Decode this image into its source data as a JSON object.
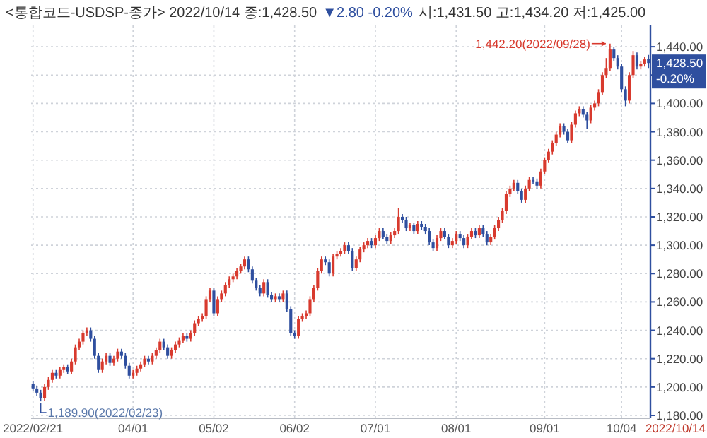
{
  "chart_data": {
    "type": "candlestick",
    "title": "<통합코드-USDSP-종가> 2022/10/14 종:1,428.50",
    "subtitle": "▼2.80  -0.20%",
    "annotations": [
      "시:1,431.50 고:1,434.20 저:1,425.00",
      "1,442.20(2022/09/28)",
      "1,189.90(2022/02/23)",
      "1,428.50",
      "-0.20%",
      "2022/10/14"
    ],
    "categories": [
      "2022/02/21",
      null,
      null,
      null,
      null,
      null,
      null,
      null,
      null,
      null,
      null,
      null,
      null,
      null,
      null,
      null,
      null,
      null,
      null,
      null,
      null,
      null,
      null,
      null,
      null,
      null,
      "04/01",
      null,
      null,
      null,
      null,
      null,
      null,
      null,
      null,
      null,
      null,
      null,
      null,
      null,
      null,
      null,
      null,
      null,
      null,
      null,
      null,
      "05/02",
      null,
      null,
      null,
      null,
      null,
      null,
      null,
      null,
      null,
      null,
      null,
      null,
      null,
      null,
      null,
      null,
      null,
      null,
      null,
      null,
      "06/02",
      null,
      null,
      null,
      null,
      null,
      null,
      null,
      null,
      null,
      null,
      null,
      null,
      null,
      null,
      null,
      null,
      null,
      null,
      null,
      null,
      "07/01",
      null,
      null,
      null,
      null,
      null,
      null,
      null,
      null,
      null,
      null,
      null,
      null,
      null,
      null,
      null,
      null,
      null,
      null,
      null,
      null,
      "08/01",
      null,
      null,
      null,
      null,
      null,
      null,
      null,
      null,
      null,
      null,
      null,
      null,
      null,
      null,
      null,
      null,
      null,
      null,
      null,
      null,
      null,
      null,
      "09/01",
      null,
      null,
      null,
      null,
      null,
      null,
      null,
      null,
      null,
      null,
      null,
      null,
      null,
      null,
      null,
      null,
      null,
      null,
      null,
      "10/04",
      null,
      null,
      null,
      null,
      null,
      null,
      null
    ],
    "ohlc": [
      [
        1202,
        1204,
        1197,
        1199
      ],
      [
        1199,
        1201,
        1194,
        1196
      ],
      [
        1196,
        1198,
        1189.9,
        1192
      ],
      [
        1192,
        1202,
        1190,
        1200
      ],
      [
        1200,
        1207,
        1198,
        1205
      ],
      [
        1205,
        1212,
        1203,
        1210
      ],
      [
        1210,
        1212,
        1206,
        1208
      ],
      [
        1208,
        1214,
        1206,
        1212
      ],
      [
        1212,
        1216,
        1210,
        1214
      ],
      [
        1214,
        1216,
        1209,
        1211
      ],
      [
        1211,
        1220,
        1209,
        1218
      ],
      [
        1218,
        1230,
        1216,
        1228
      ],
      [
        1228,
        1234,
        1226,
        1232
      ],
      [
        1232,
        1240,
        1230,
        1238
      ],
      [
        1238,
        1242,
        1236,
        1240
      ],
      [
        1240,
        1242,
        1232,
        1234
      ],
      [
        1234,
        1236,
        1220,
        1222
      ],
      [
        1222,
        1224,
        1210,
        1212
      ],
      [
        1212,
        1220,
        1210,
        1218
      ],
      [
        1218,
        1224,
        1216,
        1222
      ],
      [
        1222,
        1224,
        1215,
        1217
      ],
      [
        1217,
        1222,
        1215,
        1220
      ],
      [
        1220,
        1227,
        1218,
        1225
      ],
      [
        1225,
        1227,
        1220,
        1222
      ],
      [
        1222,
        1224,
        1213,
        1215
      ],
      [
        1215,
        1217,
        1206,
        1208
      ],
      [
        1208,
        1212,
        1206,
        1210
      ],
      [
        1210,
        1215,
        1208,
        1213
      ],
      [
        1213,
        1218,
        1211,
        1216
      ],
      [
        1216,
        1222,
        1214,
        1220
      ],
      [
        1220,
        1222,
        1216,
        1218
      ],
      [
        1218,
        1224,
        1216,
        1222
      ],
      [
        1222,
        1228,
        1220,
        1226
      ],
      [
        1226,
        1234,
        1224,
        1232
      ],
      [
        1232,
        1234,
        1226,
        1228
      ],
      [
        1228,
        1230,
        1220,
        1222
      ],
      [
        1222,
        1228,
        1220,
        1226
      ],
      [
        1226,
        1232,
        1224,
        1230
      ],
      [
        1230,
        1235,
        1228,
        1233
      ],
      [
        1233,
        1238,
        1231,
        1236
      ],
      [
        1236,
        1238,
        1232,
        1234
      ],
      [
        1234,
        1240,
        1232,
        1238
      ],
      [
        1238,
        1247,
        1236,
        1245
      ],
      [
        1245,
        1250,
        1243,
        1248
      ],
      [
        1248,
        1252,
        1246,
        1250
      ],
      [
        1250,
        1264,
        1248,
        1262
      ],
      [
        1262,
        1270,
        1260,
        1268
      ],
      [
        1268,
        1270,
        1250,
        1252
      ],
      [
        1252,
        1264,
        1250,
        1262
      ],
      [
        1262,
        1268,
        1260,
        1266
      ],
      [
        1266,
        1274,
        1264,
        1272
      ],
      [
        1272,
        1278,
        1270,
        1276
      ],
      [
        1276,
        1280,
        1274,
        1278
      ],
      [
        1278,
        1284,
        1276,
        1282
      ],
      [
        1282,
        1287,
        1280,
        1285
      ],
      [
        1285,
        1292,
        1283,
        1290
      ],
      [
        1290,
        1292,
        1281,
        1283
      ],
      [
        1283,
        1285,
        1273,
        1275
      ],
      [
        1275,
        1277,
        1268,
        1270
      ],
      [
        1270,
        1272,
        1264,
        1266
      ],
      [
        1266,
        1276,
        1264,
        1274
      ],
      [
        1274,
        1276,
        1263,
        1265
      ],
      [
        1265,
        1267,
        1260,
        1262
      ],
      [
        1262,
        1266,
        1260,
        1264
      ],
      [
        1264,
        1266,
        1260,
        1262
      ],
      [
        1262,
        1268,
        1260,
        1266
      ],
      [
        1266,
        1268,
        1253,
        1255
      ],
      [
        1255,
        1257,
        1236,
        1238
      ],
      [
        1238,
        1240,
        1234,
        1236
      ],
      [
        1236,
        1250,
        1234,
        1248
      ],
      [
        1248,
        1252,
        1246,
        1250
      ],
      [
        1250,
        1254,
        1248,
        1252
      ],
      [
        1252,
        1264,
        1250,
        1262
      ],
      [
        1262,
        1272,
        1260,
        1270
      ],
      [
        1270,
        1284,
        1268,
        1282
      ],
      [
        1282,
        1292,
        1280,
        1290
      ],
      [
        1290,
        1292,
        1286,
        1288
      ],
      [
        1288,
        1290,
        1278,
        1280
      ],
      [
        1280,
        1294,
        1278,
        1292
      ],
      [
        1292,
        1296,
        1290,
        1294
      ],
      [
        1294,
        1298,
        1292,
        1296
      ],
      [
        1296,
        1302,
        1294,
        1300
      ],
      [
        1300,
        1302,
        1294,
        1296
      ],
      [
        1296,
        1298,
        1282,
        1284
      ],
      [
        1284,
        1292,
        1282,
        1290
      ],
      [
        1290,
        1299,
        1288,
        1297
      ],
      [
        1297,
        1302,
        1295,
        1300
      ],
      [
        1300,
        1305,
        1298,
        1303
      ],
      [
        1303,
        1305,
        1298,
        1300
      ],
      [
        1300,
        1307,
        1298,
        1305
      ],
      [
        1305,
        1312,
        1303,
        1310
      ],
      [
        1310,
        1312,
        1304,
        1306
      ],
      [
        1306,
        1308,
        1301,
        1303
      ],
      [
        1303,
        1309,
        1301,
        1307
      ],
      [
        1307,
        1312,
        1305,
        1310
      ],
      [
        1310,
        1326,
        1308,
        1320
      ],
      [
        1320,
        1322,
        1316,
        1318
      ],
      [
        1318,
        1320,
        1310,
        1312
      ],
      [
        1312,
        1316,
        1310,
        1314
      ],
      [
        1314,
        1316,
        1308,
        1310
      ],
      [
        1310,
        1317,
        1308,
        1315
      ],
      [
        1315,
        1317,
        1311,
        1313
      ],
      [
        1313,
        1315,
        1308,
        1310
      ],
      [
        1310,
        1312,
        1300,
        1302
      ],
      [
        1302,
        1304,
        1296,
        1298
      ],
      [
        1298,
        1307,
        1296,
        1305
      ],
      [
        1305,
        1312,
        1303,
        1310
      ],
      [
        1310,
        1312,
        1304,
        1306
      ],
      [
        1306,
        1308,
        1298,
        1300
      ],
      [
        1300,
        1305,
        1298,
        1303
      ],
      [
        1303,
        1310,
        1301,
        1308
      ],
      [
        1308,
        1310,
        1303,
        1305
      ],
      [
        1305,
        1307,
        1298,
        1300
      ],
      [
        1300,
        1308,
        1298,
        1306
      ],
      [
        1306,
        1312,
        1304,
        1310
      ],
      [
        1310,
        1312,
        1305,
        1307
      ],
      [
        1307,
        1314,
        1305,
        1312
      ],
      [
        1312,
        1314,
        1306,
        1308
      ],
      [
        1308,
        1310,
        1300,
        1302
      ],
      [
        1302,
        1308,
        1300,
        1306
      ],
      [
        1306,
        1314,
        1304,
        1312
      ],
      [
        1312,
        1320,
        1310,
        1318
      ],
      [
        1318,
        1326,
        1316,
        1324
      ],
      [
        1324,
        1338,
        1322,
        1336
      ],
      [
        1336,
        1342,
        1334,
        1340
      ],
      [
        1340,
        1346,
        1338,
        1344
      ],
      [
        1344,
        1346,
        1336,
        1338
      ],
      [
        1338,
        1340,
        1330,
        1332
      ],
      [
        1332,
        1342,
        1330,
        1340
      ],
      [
        1340,
        1348,
        1338,
        1346
      ],
      [
        1346,
        1348,
        1343,
        1345
      ],
      [
        1345,
        1347,
        1340,
        1342
      ],
      [
        1342,
        1354,
        1340,
        1352
      ],
      [
        1352,
        1362,
        1350,
        1360
      ],
      [
        1360,
        1368,
        1358,
        1366
      ],
      [
        1366,
        1374,
        1364,
        1372
      ],
      [
        1372,
        1380,
        1370,
        1378
      ],
      [
        1378,
        1386,
        1376,
        1384
      ],
      [
        1384,
        1386,
        1378,
        1380
      ],
      [
        1380,
        1382,
        1372,
        1374
      ],
      [
        1374,
        1387,
        1372,
        1385
      ],
      [
        1385,
        1395,
        1383,
        1393
      ],
      [
        1393,
        1398,
        1391,
        1396
      ],
      [
        1396,
        1398,
        1390,
        1392
      ],
      [
        1392,
        1394,
        1382,
        1388
      ],
      [
        1388,
        1399,
        1386,
        1397
      ],
      [
        1397,
        1402,
        1395,
        1400
      ],
      [
        1400,
        1410,
        1398,
        1408
      ],
      [
        1408,
        1422,
        1406,
        1420
      ],
      [
        1420,
        1432,
        1418,
        1425
      ],
      [
        1425,
        1442.2,
        1423,
        1438
      ],
      [
        1438,
        1440,
        1430,
        1432
      ],
      [
        1432,
        1434,
        1424,
        1426
      ],
      [
        1426,
        1428,
        1408,
        1410
      ],
      [
        1410,
        1412,
        1398,
        1402
      ],
      [
        1402,
        1422,
        1400,
        1420
      ],
      [
        1420,
        1437,
        1418,
        1434
      ],
      [
        1434,
        1436,
        1424,
        1426
      ],
      [
        1426,
        1430,
        1424,
        1428
      ],
      [
        1428,
        1433,
        1426,
        1431
      ],
      [
        1431.5,
        1434.2,
        1425,
        1428.5
      ]
    ],
    "colors": [
      "#2f4f9f",
      "#2f4f9f",
      "#2f4f9f",
      "#d83a2e",
      "#d83a2e",
      "#d83a2e",
      "#2f4f9f",
      "#d83a2e",
      "#d83a2e",
      "#2f4f9f",
      "#d83a2e",
      "#d83a2e",
      "#d83a2e",
      "#d83a2e",
      "#d83a2e",
      "#2f4f9f",
      "#2f4f9f",
      "#2f4f9f",
      "#d83a2e",
      "#d83a2e",
      "#2f4f9f",
      "#d83a2e",
      "#d83a2e",
      "#2f4f9f",
      "#2f4f9f",
      "#2f4f9f",
      "#d83a2e",
      "#d83a2e",
      "#d83a2e",
      "#d83a2e",
      "#2f4f9f",
      "#d83a2e",
      "#d83a2e",
      "#d83a2e",
      "#2f4f9f",
      "#2f4f9f",
      "#d83a2e",
      "#d83a2e",
      "#d83a2e",
      "#d83a2e",
      "#2f4f9f",
      "#d83a2e",
      "#d83a2e",
      "#d83a2e",
      "#d83a2e",
      "#d83a2e",
      "#d83a2e",
      "#2f4f9f",
      "#d83a2e",
      "#d83a2e",
      "#d83a2e",
      "#d83a2e",
      "#d83a2e",
      "#d83a2e",
      "#d83a2e",
      "#d83a2e",
      "#2f4f9f",
      "#2f4f9f",
      "#2f4f9f",
      "#2f4f9f",
      "#d83a2e",
      "#2f4f9f",
      "#2f4f9f",
      "#d83a2e",
      "#2f4f9f",
      "#d83a2e",
      "#2f4f9f",
      "#2f4f9f",
      "#2f4f9f",
      "#d83a2e",
      "#d83a2e",
      "#d83a2e",
      "#d83a2e",
      "#d83a2e",
      "#d83a2e",
      "#d83a2e",
      "#2f4f9f",
      "#2f4f9f",
      "#d83a2e",
      "#d83a2e",
      "#d83a2e",
      "#d83a2e",
      "#2f4f9f",
      "#2f4f9f",
      "#d83a2e",
      "#d83a2e",
      "#d83a2e",
      "#d83a2e",
      "#2f4f9f",
      "#d83a2e",
      "#d83a2e",
      "#2f4f9f",
      "#2f4f9f",
      "#d83a2e",
      "#d83a2e",
      "#d83a2e",
      "#2f4f9f",
      "#2f4f9f",
      "#d83a2e",
      "#2f4f9f",
      "#d83a2e",
      "#2f4f9f",
      "#2f4f9f",
      "#2f4f9f",
      "#2f4f9f",
      "#d83a2e",
      "#d83a2e",
      "#2f4f9f",
      "#2f4f9f",
      "#d83a2e",
      "#d83a2e",
      "#2f4f9f",
      "#2f4f9f",
      "#d83a2e",
      "#d83a2e",
      "#2f4f9f",
      "#d83a2e",
      "#2f4f9f",
      "#2f4f9f",
      "#d83a2e",
      "#d83a2e",
      "#d83a2e",
      "#d83a2e",
      "#d83a2e",
      "#d83a2e",
      "#d83a2e",
      "#2f4f9f",
      "#2f4f9f",
      "#d83a2e",
      "#d83a2e",
      "#2f4f9f",
      "#2f4f9f",
      "#d83a2e",
      "#d83a2e",
      "#d83a2e",
      "#d83a2e",
      "#d83a2e",
      "#d83a2e",
      "#2f4f9f",
      "#2f4f9f",
      "#d83a2e",
      "#d83a2e",
      "#d83a2e",
      "#2f4f9f",
      "#2f4f9f",
      "#d83a2e",
      "#d83a2e",
      "#d83a2e",
      "#d83a2e",
      "#d83a2e",
      "#d83a2e",
      "#2f4f9f",
      "#2f4f9f",
      "#2f4f9f",
      "#2f4f9f",
      "#d83a2e",
      "#d83a2e",
      "#2f4f9f",
      "#d83a2e",
      "#d83a2e",
      "#2f4f9f"
    ],
    "ylim": [
      1178,
      1455
    ],
    "yticks": [
      {
        "value": 1180,
        "label": "1,180.00"
      },
      {
        "value": 1200,
        "label": "1,200.00"
      },
      {
        "value": 1220,
        "label": "1,220.00"
      },
      {
        "value": 1240,
        "label": "1,240.00"
      },
      {
        "value": 1260,
        "label": "1,260.00"
      },
      {
        "value": 1280,
        "label": "1,280.00"
      },
      {
        "value": 1300,
        "label": "1,300.00"
      },
      {
        "value": 1320,
        "label": "1,320.00"
      },
      {
        "value": 1340,
        "label": "1,340.00"
      },
      {
        "value": 1360,
        "label": "1,360.00"
      },
      {
        "value": 1380,
        "label": "1,380.00"
      },
      {
        "value": 1400,
        "label": "1,400.00"
      },
      {
        "value": 1420,
        "label": null
      },
      {
        "value": 1440,
        "label": "1,440.00"
      }
    ],
    "grid": true
  }
}
